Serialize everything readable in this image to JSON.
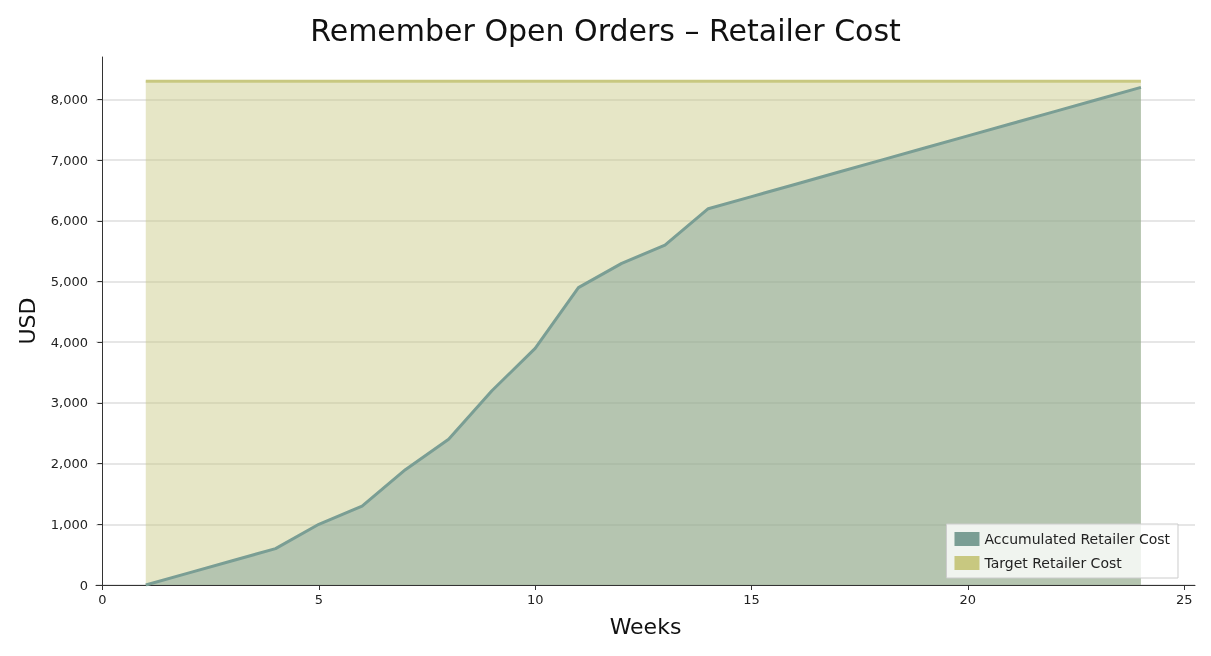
{
  "chart_data": {
    "type": "area",
    "title": "Remember Open Orders – Retailer Cost",
    "xlabel": "Weeks",
    "ylabel": "USD",
    "x": [
      1,
      2,
      3,
      4,
      5,
      6,
      7,
      8,
      9,
      10,
      11,
      12,
      13,
      14,
      15,
      16,
      17,
      18,
      19,
      20,
      21,
      22,
      23,
      24
    ],
    "series": [
      {
        "name": "Target Retailer Cost",
        "color": "#c8c880",
        "values": [
          8300,
          8300,
          8300,
          8300,
          8300,
          8300,
          8300,
          8300,
          8300,
          8300,
          8300,
          8300,
          8300,
          8300,
          8300,
          8300,
          8300,
          8300,
          8300,
          8300,
          8300,
          8300,
          8300,
          8300
        ]
      },
      {
        "name": "Accumulated Retailer Cost",
        "color": "#7a9e94",
        "values": [
          0,
          200,
          400,
          600,
          1000,
          1300,
          1900,
          2400,
          3200,
          3900,
          4900,
          5300,
          5600,
          6200,
          6400,
          6600,
          6800,
          7000,
          7200,
          7400,
          7600,
          7800,
          8000,
          8200
        ]
      }
    ],
    "xlim": [
      -0.15,
      25.25
    ],
    "xticks": [
      0,
      5,
      10,
      15,
      20,
      25
    ],
    "ylim": [
      0,
      8700
    ],
    "yticks": [
      0,
      {
        "value": 1000,
        "label": "1,000"
      },
      {
        "value": 2000,
        "label": "2,000"
      },
      {
        "value": 3000,
        "label": "3,000"
      },
      {
        "value": 4000,
        "label": "4,000"
      },
      {
        "value": 5000,
        "label": "5,000"
      },
      {
        "value": 6000,
        "label": "6,000"
      },
      {
        "value": 7000,
        "label": "7,000"
      },
      {
        "value": 8000,
        "label": "8,000"
      }
    ],
    "grid": "y",
    "legend": "bottom right"
  }
}
